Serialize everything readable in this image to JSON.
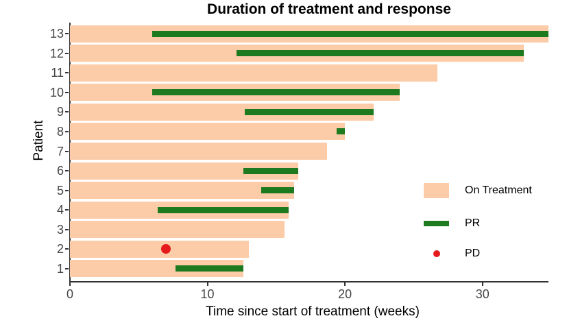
{
  "chart_data": {
    "type": "bar",
    "subtype": "swimmer-plot-horizontal",
    "title": "Duration of treatment and response",
    "xlabel": "Time since start of treatment (weeks)",
    "ylabel": "Patient",
    "xlim": [
      0,
      34.8
    ],
    "x_ticks": [
      0,
      10,
      20,
      30
    ],
    "grid": "off",
    "legend_position": "right-middle",
    "colors": {
      "on_treatment": "#FCCBA7",
      "pr": "#1E7A1E",
      "pd": "#E41A1C",
      "axis": "#333333",
      "tick_text": "#444444"
    },
    "patients": [
      {
        "id": "13",
        "on_treatment_weeks": 34.8,
        "pr_start": 6.0,
        "pr_end": 34.8,
        "pd_week": null
      },
      {
        "id": "12",
        "on_treatment_weeks": 33.0,
        "pr_start": 12.1,
        "pr_end": 33.0,
        "pd_week": null
      },
      {
        "id": "11",
        "on_treatment_weeks": 26.7,
        "pr_start": null,
        "pr_end": null,
        "pd_week": null
      },
      {
        "id": "10",
        "on_treatment_weeks": 24.0,
        "pr_start": 6.0,
        "pr_end": 24.0,
        "pd_week": null
      },
      {
        "id": "9",
        "on_treatment_weeks": 22.1,
        "pr_start": 12.7,
        "pr_end": 22.1,
        "pd_week": null
      },
      {
        "id": "8",
        "on_treatment_weeks": 20.0,
        "pr_start": 19.4,
        "pr_end": 20.0,
        "pd_week": null
      },
      {
        "id": "7",
        "on_treatment_weeks": 18.7,
        "pr_start": null,
        "pr_end": null,
        "pd_week": null
      },
      {
        "id": "6",
        "on_treatment_weeks": 16.6,
        "pr_start": 12.6,
        "pr_end": 16.6,
        "pd_week": null
      },
      {
        "id": "5",
        "on_treatment_weeks": 16.3,
        "pr_start": 13.9,
        "pr_end": 16.3,
        "pd_week": null
      },
      {
        "id": "4",
        "on_treatment_weeks": 15.9,
        "pr_start": 6.4,
        "pr_end": 15.9,
        "pd_week": null
      },
      {
        "id": "3",
        "on_treatment_weeks": 15.6,
        "pr_start": null,
        "pr_end": null,
        "pd_week": null
      },
      {
        "id": "2",
        "on_treatment_weeks": 13.0,
        "pr_start": null,
        "pr_end": null,
        "pd_week": 7.0
      },
      {
        "id": "1",
        "on_treatment_weeks": 12.6,
        "pr_start": 7.7,
        "pr_end": 12.6,
        "pd_week": null
      }
    ],
    "legend": [
      {
        "label": "On Treatment",
        "marker": "rect"
      },
      {
        "label": "PR",
        "marker": "line"
      },
      {
        "label": "PD",
        "marker": "dot"
      }
    ]
  }
}
